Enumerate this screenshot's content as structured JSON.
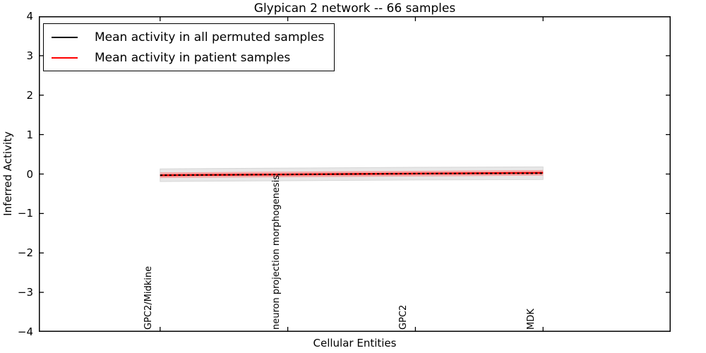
{
  "title": "Glypican 2 network -- 66 samples",
  "axes": {
    "xlabel": "Cellular Entities",
    "ylabel": "Inferred Activity",
    "y_tick_labels": [
      "4",
      "3",
      "2",
      "1",
      "0",
      "−1",
      "−2",
      "−3",
      "−4"
    ]
  },
  "legend": {
    "entries": [
      {
        "label": "Mean activity in all permuted samples",
        "color": "#000000"
      },
      {
        "label": "Mean activity in patient samples",
        "color": "#ff0000"
      }
    ]
  },
  "chart_data": {
    "type": "line",
    "title": "Glypican 2 network -- 66 samples",
    "xlabel": "Cellular Entities",
    "ylabel": "Inferred Activity",
    "categories": [
      "GPC2/Midkine",
      "neuron projection morphogenesis",
      "GPC2",
      "MDK"
    ],
    "ylim": [
      -4,
      4
    ],
    "xlim": [
      -0.95,
      4.0
    ],
    "y_ticks": [
      4,
      3,
      2,
      1,
      0,
      -1,
      -2,
      -3,
      -4
    ],
    "grid": false,
    "legend_position": "upper left",
    "tick_direction": "in",
    "series": [
      {
        "name": "Mean activity in all permuted samples",
        "color": "#000000",
        "line_style": "dashed",
        "values": [
          -0.03,
          -0.01,
          0.01,
          0.02
        ],
        "band_halfwidth": 0.16,
        "band_color": "#e7e7e7",
        "band_edge_color": "#d6d6d6"
      },
      {
        "name": "Mean activity in patient samples",
        "color": "#ff0000",
        "line_style": "solid",
        "values": [
          -0.03,
          -0.01,
          0.01,
          0.03
        ],
        "band_halfwidth": 0.07,
        "band_color": "#f6a8a8",
        "band_edge_color": "none"
      }
    ]
  }
}
